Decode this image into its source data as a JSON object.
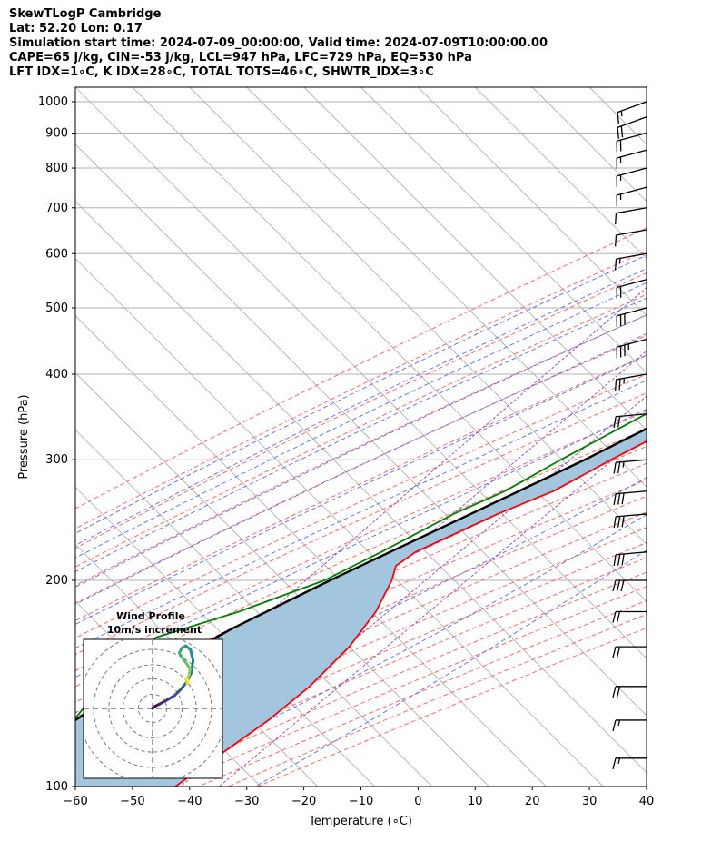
{
  "header": {
    "line1": "SkewTLogP Cambridge",
    "line2": "Lat: 52.20   Lon: 0.17",
    "line3": "Simulation start time: 2024-07-09_00:00:00, Valid time: 2024-07-09T10:00:00.00",
    "line4": "CAPE=65 j/kg, CIN=-53 j/kg, LCL=947 hPa, LFC=729 hPa, EQ=530 hPa",
    "line5": "LFT IDX=1∘C, K IDX=28∘C, TOTAL TOTS=46∘C, SHWTR_IDX=3∘C"
  },
  "chart_data": {
    "type": "line",
    "chart_kind": "skew-T log-P diagram",
    "xlabel": "Temperature (∘C)",
    "ylabel": "Pressure (hPa)",
    "y_scale": "log",
    "xlim": [
      -60,
      40
    ],
    "ylim": [
      1050,
      100
    ],
    "x_ticks": [
      -60,
      -50,
      -40,
      -30,
      -20,
      -10,
      0,
      10,
      20,
      30,
      40
    ],
    "y_ticks": [
      1000,
      900,
      800,
      700,
      600,
      500,
      400,
      300,
      200,
      100
    ],
    "grid": true,
    "colors": {
      "temperature": "#ff0000",
      "dewpoint": "#008000",
      "parcel": "#000000",
      "cape_fill": "#a3c6de",
      "dry_adiabats": "#ff6666",
      "moist_adiabats": "#6677ee",
      "mixing_ratio": "#9a4fbf",
      "isotherms": "#b0b0b0"
    },
    "series": [
      {
        "key": "temperature",
        "pressure": [
          1000,
          950,
          900,
          850,
          800,
          750,
          700,
          650,
          600,
          550,
          500,
          450,
          400,
          350,
          300,
          270,
          250,
          220,
          210,
          200,
          180,
          160,
          140,
          125,
          110,
          100
        ],
        "values": [
          21,
          17.6,
          17.2,
          16.5,
          15.6,
          13.8,
          10.6,
          7.5,
          4.6,
          1.8,
          -1.7,
          -5.6,
          -10.4,
          -16,
          -23.4,
          -28,
          -33.8,
          -41.5,
          -42.5,
          -40.7,
          -38,
          -36.5,
          -36.5,
          -37.8,
          -40.5,
          -42.5
        ]
      },
      {
        "key": "dewpoint",
        "pressure": [
          1000,
          950,
          900,
          850,
          800,
          750,
          700,
          650,
          600,
          550,
          500,
          450,
          400,
          350,
          300,
          270,
          250,
          220,
          200,
          180,
          165,
          140,
          120,
          100
        ],
        "values": [
          17.3,
          17.2,
          14.5,
          10.5,
          6.7,
          2.8,
          -1.2,
          -3.5,
          -5.7,
          -9.2,
          -13.2,
          -17,
          -20.8,
          -25.3,
          -32.2,
          -36.5,
          -41.5,
          -47.5,
          -52.5,
          -62,
          -72,
          -73,
          -71.5,
          -70
        ]
      },
      {
        "key": "parcel",
        "pressure": [
          1000,
          950,
          900,
          850,
          800,
          750,
          700,
          650,
          600,
          550,
          500,
          450,
          400,
          350,
          300,
          250,
          200,
          170,
          150,
          130,
          115,
          100
        ],
        "values": [
          21,
          17.6,
          15.2,
          13.9,
          12.3,
          10.7,
          8.7,
          6.3,
          3.5,
          0.3,
          -3.6,
          -8.1,
          -13.6,
          -20.1,
          -28,
          -38.5,
          -51.5,
          -60.2,
          -65.5,
          -70.5,
          -74,
          -77
        ]
      }
    ],
    "wind_barbs": {
      "pressure": [
        1000,
        950,
        900,
        850,
        800,
        750,
        700,
        650,
        600,
        550,
        500,
        450,
        400,
        350,
        300,
        270,
        250,
        220,
        200,
        180,
        160,
        140,
        125,
        110
      ],
      "speed_kt": [
        15,
        20,
        20,
        15,
        15,
        15,
        10,
        10,
        15,
        20,
        30,
        35,
        25,
        20,
        25,
        30,
        30,
        30,
        30,
        20,
        20,
        20,
        15,
        15
      ],
      "direction_deg": [
        250,
        250,
        255,
        255,
        255,
        255,
        260,
        260,
        260,
        255,
        255,
        255,
        260,
        265,
        265,
        265,
        265,
        265,
        270,
        270,
        270,
        270,
        270,
        270
      ]
    },
    "inset": {
      "title": "Wind Profile",
      "subtitle": "10m/s increment",
      "hodograph": {
        "u": [
          0,
          1.2,
          3,
          5.1,
          7.2,
          9.5,
          12.1,
          14.8,
          16.8,
          17.5,
          16.4,
          14.4,
          12.8,
          11.5,
          12.6,
          14.5,
          16.2,
          15.8,
          14.8,
          14.9,
          15.4,
          14.5
        ],
        "v": [
          0,
          1,
          1.9,
          3,
          4.2,
          5.6,
          8.1,
          11.4,
          15.6,
          20.8,
          25.3,
          27,
          26.2,
          24,
          22.1,
          19.6,
          17.1,
          14.5,
          12.3,
          10.6,
          11.9,
          12.9
        ]
      }
    }
  }
}
